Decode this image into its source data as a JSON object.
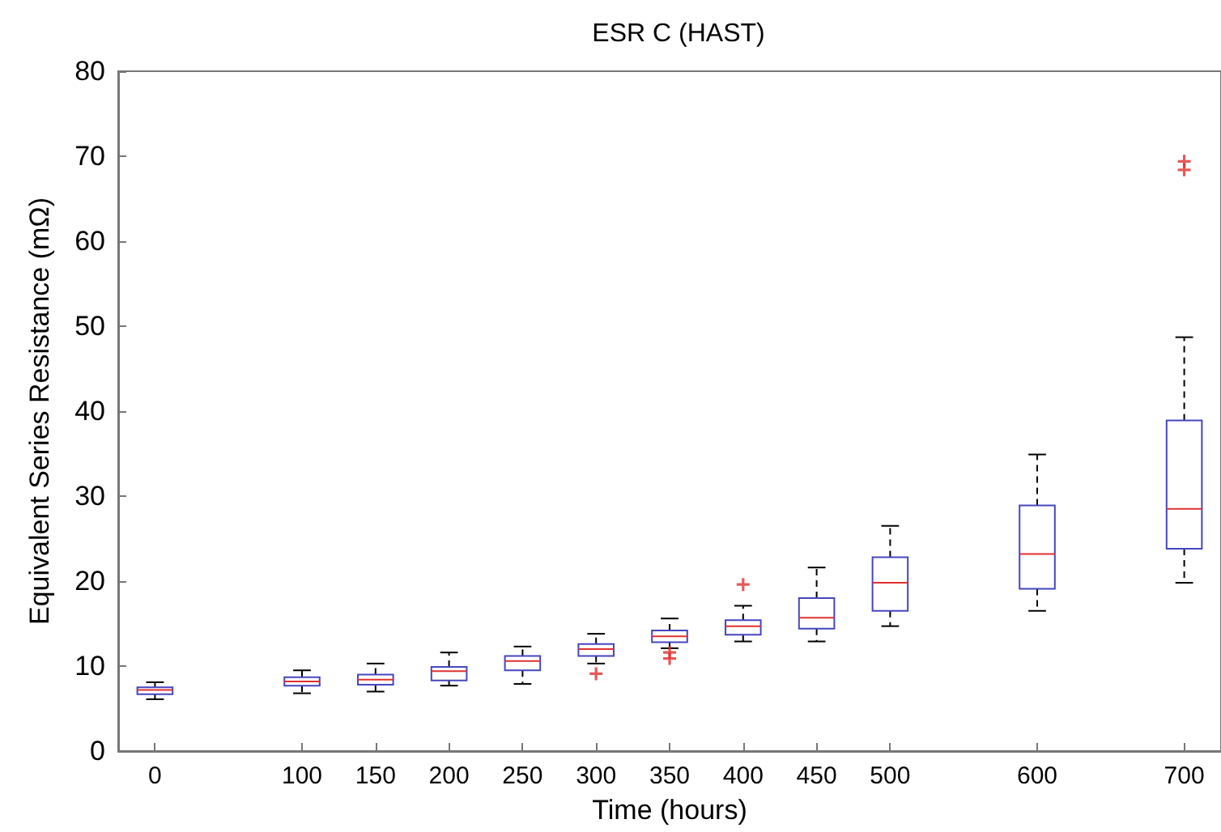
{
  "chart_data": {
    "type": "box",
    "title": "ESR C (HAST)",
    "xlabel": "Time (hours)",
    "ylabel": "Equivalent Series Resistance (mΩ)",
    "x": [
      0,
      100,
      150,
      200,
      250,
      300,
      350,
      400,
      450,
      500,
      600,
      700
    ],
    "xlim": [
      -25,
      725
    ],
    "xticks": [
      0,
      100,
      150,
      200,
      250,
      300,
      350,
      400,
      450,
      500,
      600,
      700
    ],
    "ylim": [
      0,
      80
    ],
    "yticks": [
      0,
      10,
      20,
      30,
      40,
      50,
      60,
      70,
      80
    ],
    "grid": false,
    "series": [
      {
        "color": "#4646c0",
        "boxes": [
          {
            "low": 6.1,
            "q1": 6.7,
            "median": 7.2,
            "q3": 7.5,
            "high": 8.1
          },
          {
            "low": 6.8,
            "q1": 7.7,
            "median": 8.2,
            "q3": 8.7,
            "high": 9.5
          },
          {
            "low": 7.0,
            "q1": 7.8,
            "median": 8.4,
            "q3": 9.0,
            "high": 10.3
          },
          {
            "low": 7.7,
            "q1": 8.3,
            "median": 9.4,
            "q3": 9.9,
            "high": 11.6
          },
          {
            "low": 7.9,
            "q1": 9.5,
            "median": 10.6,
            "q3": 11.2,
            "high": 12.3
          },
          {
            "low": 10.3,
            "q1": 11.2,
            "median": 12.0,
            "q3": 12.6,
            "high": 13.8,
            "outliers": [
              9.1
            ]
          },
          {
            "low": 12.1,
            "q1": 12.8,
            "median": 13.5,
            "q3": 14.2,
            "high": 15.6,
            "outliers": [
              11.6,
              10.9
            ]
          },
          {
            "low": 12.9,
            "q1": 13.7,
            "median": 14.7,
            "q3": 15.4,
            "high": 17.1,
            "outliers": [
              19.6
            ]
          },
          {
            "low": 12.9,
            "q1": 14.4,
            "median": 15.7,
            "q3": 18.0,
            "high": 21.6
          },
          {
            "low": 14.7,
            "q1": 16.5,
            "median": 19.8,
            "q3": 22.8,
            "high": 26.5
          },
          {
            "low": 16.5,
            "q1": 19.1,
            "median": 23.2,
            "q3": 28.9,
            "high": 34.9
          },
          {
            "low": 19.8,
            "q1": 23.8,
            "median": 28.5,
            "q3": 38.9,
            "high": 48.7,
            "outliers": [
              69.4,
              68.4
            ]
          }
        ]
      }
    ]
  }
}
